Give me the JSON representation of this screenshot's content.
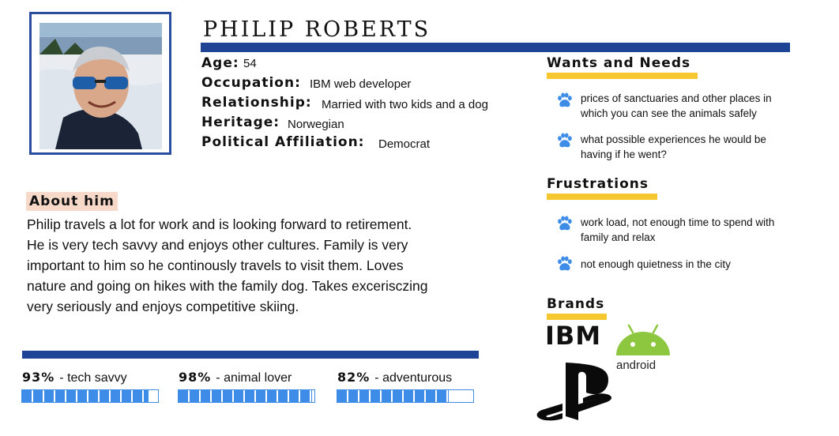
{
  "persona": {
    "name": "PHILIP ROBERTS",
    "photo": "profile-photo"
  },
  "facts": [
    {
      "label": "Age:",
      "value": "54"
    },
    {
      "label": "Occupation:",
      "value": "IBM web developer"
    },
    {
      "label": "Relationship:",
      "value": "Married with two kids and a dog"
    },
    {
      "label": "Heritage:",
      "value": "Norwegian"
    },
    {
      "label": "Political Affiliation:",
      "value": "Democrat"
    }
  ],
  "about": {
    "heading": "About him",
    "lines": [
      "Philip travels a lot for work and is looking forward to retirement.",
      "He is very tech savvy and enjoys other cultures. Family is very",
      "important to him so he continously travels to visit them. Loves",
      "nature and going on hikes with the family dog. Takes excerisczing",
      "very seriously and enjoys competitive skiing."
    ]
  },
  "skills": [
    {
      "percent_text": "93%",
      "label": "- tech savvy",
      "value": 0.93
    },
    {
      "percent_text": "98%",
      "label": "- animal lover",
      "value": 0.98
    },
    {
      "percent_text": "82%",
      "label": "- adventurous",
      "value": 0.82
    }
  ],
  "wants": {
    "title": "Wants and Needs",
    "icon": "paw-icon",
    "items": [
      {
        "line1": "prices of sanctuaries and other places in",
        "line2": "which you can see the animals safely"
      },
      {
        "line1": "what possible experiences he would be",
        "line2": "having if he went?"
      }
    ]
  },
  "frustrations": {
    "title": "Frustrations",
    "icon": "paw-icon",
    "items": [
      {
        "line1": "work load, not enough time to spend with",
        "line2": "family and relax"
      },
      {
        "line1": "not enough quietness in the city",
        "line2": ""
      }
    ]
  },
  "brands": {
    "title": "Brands",
    "ibm": "IBM",
    "android": "android",
    "playstation": "playstation-logo"
  },
  "colors": {
    "navy": "#1f4496",
    "accent_yellow": "#f7c730",
    "skill_blue": "#3d8ce8",
    "paw_blue": "#3d8ce8",
    "about_highlight": "#f6d9c8",
    "android_green": "#8dc63f"
  }
}
